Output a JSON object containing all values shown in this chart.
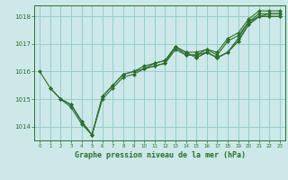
{
  "background_color": "#cce8e8",
  "grid_color": "#99cccc",
  "line_color": "#2d6e2d",
  "marker_color": "#2d6e2d",
  "title": "Graphe pression niveau de la mer (hPa)",
  "xlim": [
    -0.5,
    23.5
  ],
  "ylim": [
    1013.5,
    1018.4
  ],
  "yticks": [
    1014,
    1015,
    1016,
    1017,
    1018
  ],
  "xticks": [
    0,
    1,
    2,
    3,
    4,
    5,
    6,
    7,
    8,
    9,
    10,
    11,
    12,
    13,
    14,
    15,
    16,
    17,
    18,
    19,
    20,
    21,
    22,
    23
  ],
  "series": [
    [
      1016.0,
      1015.4,
      1015.0,
      1014.7,
      1014.1,
      1013.7,
      1015.0,
      1015.4,
      1015.8,
      1015.9,
      1016.1,
      1016.2,
      1016.3,
      1016.8,
      1016.6,
      1016.6,
      1016.7,
      1016.5,
      1016.7,
      1017.2,
      1017.8,
      1018.0,
      1018.1,
      1018.1
    ],
    [
      null,
      1015.4,
      1015.0,
      1014.8,
      1014.2,
      1013.7,
      1015.1,
      1015.5,
      1015.9,
      1016.0,
      1016.2,
      1016.3,
      1016.4,
      1016.9,
      1016.7,
      1016.7,
      1016.8,
      1016.7,
      1017.2,
      1017.4,
      1017.9,
      1018.2,
      1018.2,
      1018.2
    ],
    [
      null,
      null,
      1015.0,
      1014.8,
      1014.2,
      1013.7,
      1015.1,
      1015.5,
      1015.9,
      1016.0,
      1016.1,
      1016.3,
      1016.4,
      1016.9,
      1016.7,
      1016.5,
      1016.7,
      1016.5,
      1016.7,
      1017.1,
      1017.7,
      1018.0,
      1018.0,
      1018.0
    ],
    [
      null,
      null,
      null,
      null,
      null,
      null,
      null,
      null,
      null,
      null,
      1016.1,
      1016.2,
      1016.3,
      1016.9,
      1016.6,
      1016.6,
      1016.8,
      1016.6,
      1017.1,
      1017.3,
      1017.8,
      1018.1,
      1018.1,
      1018.1
    ],
    [
      null,
      null,
      null,
      null,
      null,
      null,
      null,
      null,
      null,
      null,
      null,
      null,
      null,
      null,
      null,
      1016.5,
      1016.7,
      1016.5,
      1016.7,
      1017.1,
      1017.7,
      1018.0,
      1018.0,
      1018.0
    ]
  ]
}
